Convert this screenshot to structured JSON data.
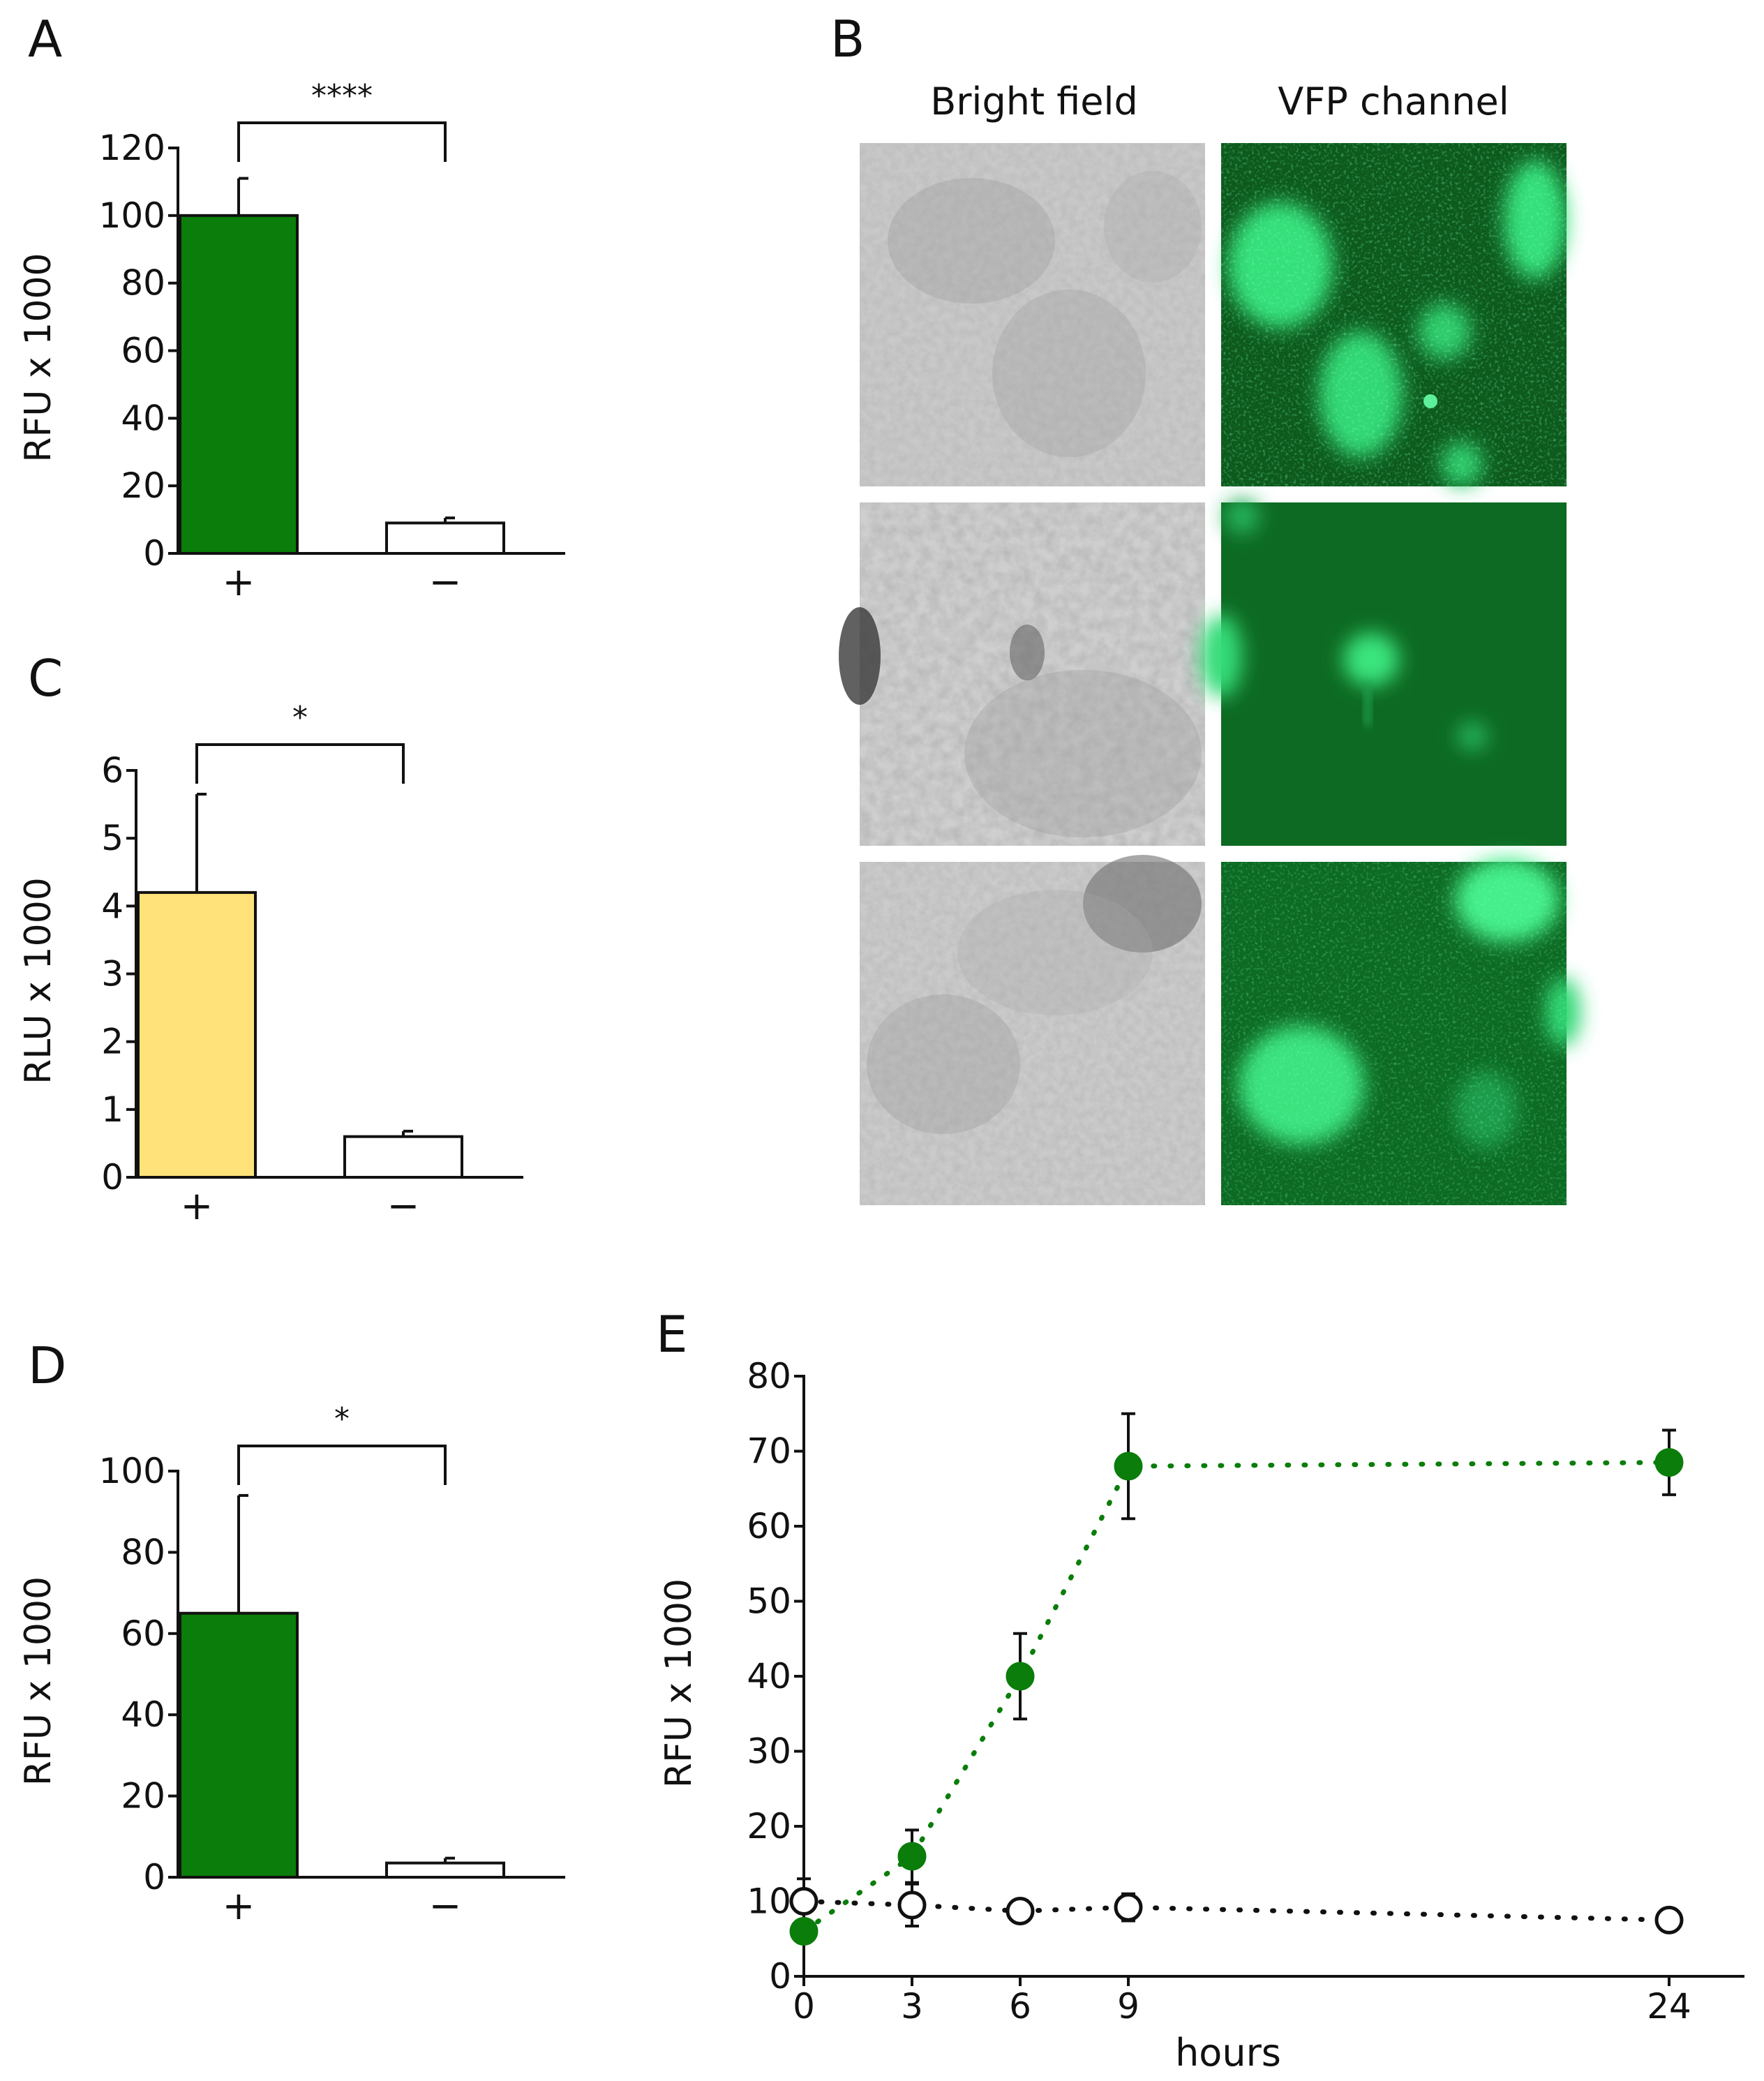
{
  "panels": {
    "A": "A",
    "B": "B",
    "C": "C",
    "D": "D",
    "E": "E"
  },
  "colors": {
    "green": "#0a7d0a",
    "yellow": "#ffe27a",
    "white": "#ffffff",
    "axis": "#111111"
  },
  "chart_data": [
    {
      "id": "A",
      "type": "bar",
      "ylabel": "RFU x 1000",
      "categories": [
        "+",
        "−"
      ],
      "values": [
        100,
        9
      ],
      "errors": [
        11,
        1.5
      ],
      "bar_colors": [
        "#0a7d0a",
        "#ffffff"
      ],
      "yticks": [
        0,
        20,
        40,
        60,
        80,
        100,
        120
      ],
      "ylim": [
        0,
        120
      ],
      "significance": "****"
    },
    {
      "id": "C",
      "type": "bar",
      "ylabel": "RLU x 1000",
      "categories": [
        "+",
        "−"
      ],
      "values": [
        4.2,
        0.6
      ],
      "errors": [
        1.45,
        0.08
      ],
      "bar_colors": [
        "#ffe27a",
        "#ffffff"
      ],
      "yticks": [
        0,
        1,
        2,
        3,
        4,
        5,
        6
      ],
      "ylim": [
        0,
        6
      ],
      "significance": "*"
    },
    {
      "id": "D",
      "type": "bar",
      "ylabel": "RFU x 1000",
      "categories": [
        "+",
        "−"
      ],
      "values": [
        65,
        3.5
      ],
      "errors": [
        29,
        1.2
      ],
      "bar_colors": [
        "#0a7d0a",
        "#ffffff"
      ],
      "yticks": [
        0,
        20,
        40,
        60,
        80,
        100
      ],
      "ylim": [
        0,
        100
      ],
      "significance": "*"
    },
    {
      "id": "E",
      "type": "line",
      "ylabel": "RFU x 1000",
      "xlabel": "hours",
      "xticks": [
        0,
        3,
        6,
        9,
        24
      ],
      "yticks": [
        0,
        10,
        20,
        30,
        40,
        50,
        60,
        70,
        80
      ],
      "xlim": [
        0,
        26
      ],
      "ylim": [
        0,
        80
      ],
      "series": [
        {
          "color": "#0a7d0a",
          "filled": true,
          "x": [
            0,
            3,
            6,
            9,
            24
          ],
          "y": [
            6,
            16,
            40,
            68,
            68.5
          ],
          "err": [
            1.5,
            3.5,
            5.7,
            7,
            4.3
          ]
        },
        {
          "color": "#111111",
          "filled": false,
          "x": [
            0,
            3,
            6,
            9,
            24
          ],
          "y": [
            10,
            9.5,
            8.7,
            9.2,
            7.5
          ],
          "err": [
            3,
            2.8,
            0.8,
            1.8,
            0.6
          ]
        }
      ]
    }
  ],
  "microscopy": {
    "col_labels": [
      "Bright field",
      "VFP channel"
    ],
    "rows": 3
  }
}
